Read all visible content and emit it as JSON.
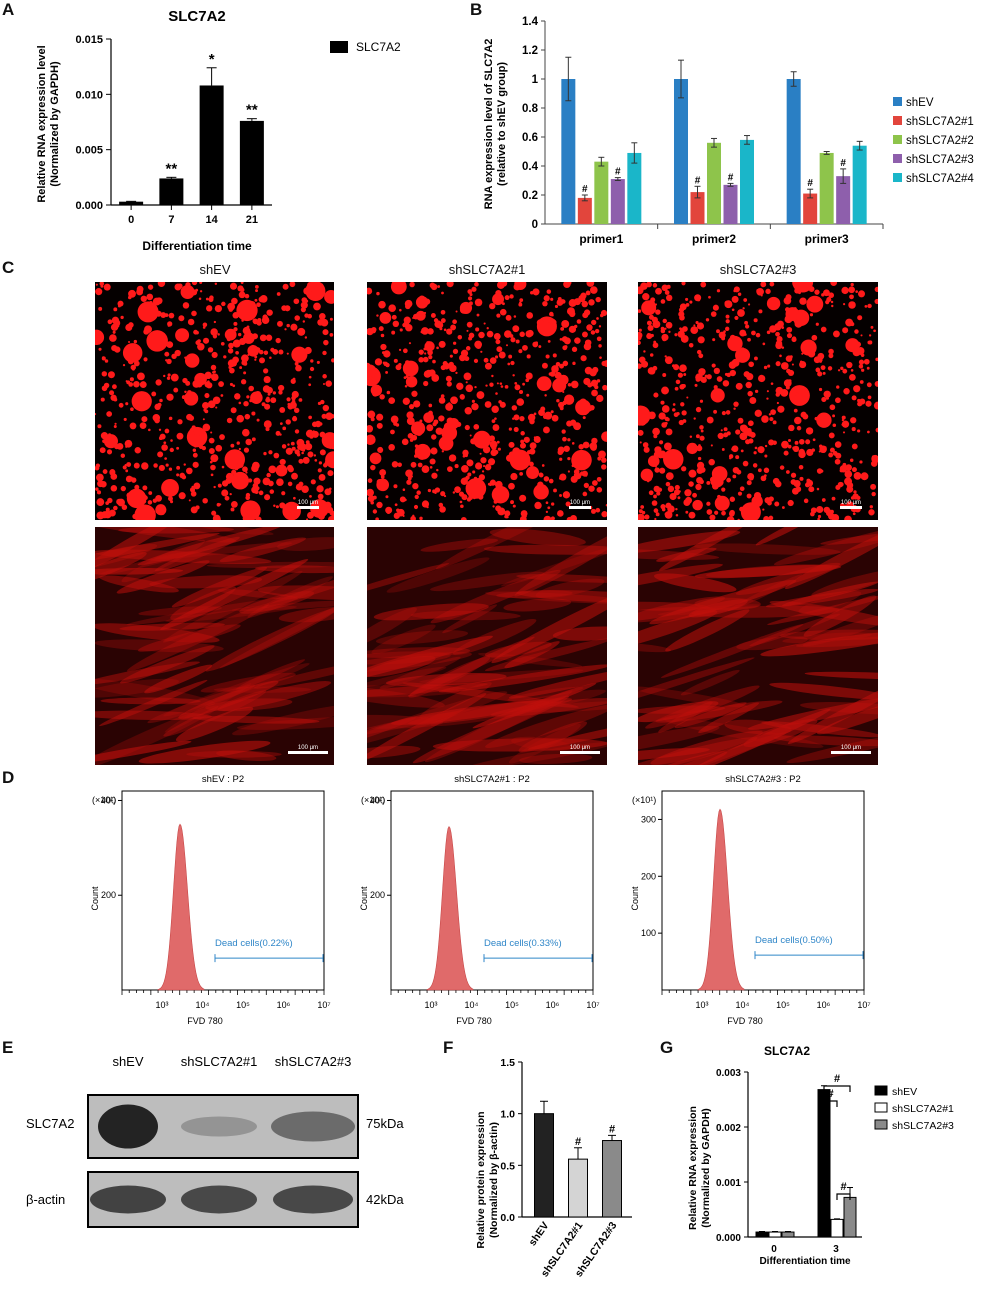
{
  "panelA": {
    "letter": "A",
    "title": "SLC7A2",
    "ylabel_line1": "Relative RNA expression level",
    "ylabel_line2": "(Normalized by GAPDH)",
    "xlabel": "Differentiation time",
    "legend": "SLC7A2",
    "yticks": [
      "0.000",
      "0.005",
      "0.010",
      "0.015"
    ],
    "color": "#000000"
  },
  "panelB": {
    "letter": "B",
    "ylabel_line1": "RNA expression level of SLC7A2",
    "ylabel_line2": "(relative to  shEV group)",
    "yticks": [
      "0",
      "0.2",
      "0.4",
      "0.6",
      "0.8",
      "1",
      "1.2",
      "1.4"
    ],
    "hash": "#"
  },
  "panelC": {
    "letter": "C",
    "titles": [
      "shEV",
      "shSLC7A2#1",
      "shSLC7A2#3"
    ],
    "scalebar": "100 μm"
  },
  "panelD": {
    "letter": "D",
    "titles": [
      "shEV : P2",
      "shSLC7A2#1 : P2",
      "shSLC7A2#3 : P2"
    ],
    "gates": [
      "Dead cells(0.22%)",
      "Dead cells(0.33%)",
      "Dead cells(0.50%)"
    ],
    "multiplier": "(×10¹)",
    "ylabel": "Count",
    "xlabel": "FVD 780",
    "yticks_a": [
      "200",
      "400"
    ],
    "yticks_c": [
      "100",
      "200",
      "300"
    ],
    "xtick_labels": [
      "10³",
      "10⁴",
      "10⁵",
      "10⁶",
      "10⁷"
    ],
    "fill_color": "#e06a6a"
  },
  "panelE": {
    "letter": "E",
    "lanes": [
      "shEV",
      "shSLC7A2#1",
      "shSLC7A2#3"
    ],
    "rows": [
      {
        "label": "SLC7A2",
        "size": "75kDa"
      },
      {
        "label": "β-actin",
        "size": "42kDa"
      }
    ]
  },
  "panelF": {
    "letter": "F",
    "ylabel_line1": "Relative protein expression",
    "ylabel_line2": "(Normalized by β-actin)",
    "yticks": [
      "0.0",
      "0.5",
      "1.0",
      "1.5"
    ],
    "hash": "#"
  },
  "panelG": {
    "letter": "G",
    "title": "SLC7A2",
    "ylabel_line1": "Relative RNA expression",
    "ylabel_line2": "(Normalized by GAPDH)",
    "xlabel": "Differentiation time",
    "yticks": [
      "0.000",
      "0.001",
      "0.002",
      "0.003"
    ],
    "hash": "#"
  },
  "chart_data": [
    {
      "id": "A",
      "type": "bar",
      "title": "SLC7A2",
      "categories": [
        "0",
        "7",
        "14",
        "21"
      ],
      "values": [
        0.0003,
        0.0024,
        0.0108,
        0.0076
      ],
      "errors": [
        3e-05,
        0.0001,
        0.0016,
        0.0002
      ],
      "annotations": [
        "",
        "**",
        "*",
        "**"
      ],
      "ylim": [
        0,
        0.015
      ],
      "xlabel": "Differentiation time",
      "ylabel": "Relative RNA expression level (Normalized by GAPDH)",
      "legend": "top-right"
    },
    {
      "id": "B",
      "type": "bar",
      "categories": [
        "primer1",
        "primer2",
        "primer3"
      ],
      "ylim": [
        0,
        1.4
      ],
      "ylabel": "RNA expression level of SLC7A2 (relative to  shEV group)",
      "legend": "right",
      "series": [
        {
          "name": "shEV",
          "color": "#2a7fc4",
          "values": [
            1.0,
            1.0,
            1.0
          ],
          "errors": [
            0.15,
            0.13,
            0.05
          ],
          "marks": [
            "",
            "",
            ""
          ]
        },
        {
          "name": "shSLC7A2#1",
          "color": "#e2453c",
          "values": [
            0.18,
            0.22,
            0.21
          ],
          "errors": [
            0.02,
            0.04,
            0.03
          ],
          "marks": [
            "#",
            "#",
            "#"
          ]
        },
        {
          "name": "shSLC7A2#2",
          "color": "#8ec44b",
          "values": [
            0.43,
            0.56,
            0.49
          ],
          "errors": [
            0.03,
            0.03,
            0.01
          ],
          "marks": [
            "",
            "",
            ""
          ]
        },
        {
          "name": "shSLC7A2#3",
          "color": "#8e5fac",
          "values": [
            0.31,
            0.27,
            0.33
          ],
          "errors": [
            0.01,
            0.01,
            0.05
          ],
          "marks": [
            "#",
            "#",
            "#"
          ]
        },
        {
          "name": "shSLC7A2#4",
          "color": "#1ab6c9",
          "values": [
            0.49,
            0.58,
            0.54
          ],
          "errors": [
            0.07,
            0.03,
            0.03
          ],
          "marks": [
            "",
            "",
            ""
          ]
        }
      ]
    },
    {
      "id": "F",
      "type": "bar",
      "categories": [
        "shEV",
        "shSLC7A2#1",
        "shSLC7A2#3"
      ],
      "values": [
        1.0,
        0.56,
        0.74
      ],
      "errors": [
        0.12,
        0.11,
        0.05
      ],
      "colors": [
        "#222222",
        "#d4d4d4",
        "#8a8a8a"
      ],
      "annotations": [
        "",
        "#",
        "#"
      ],
      "ylim": [
        0,
        1.5
      ],
      "ylabel": "Relative protein expression (Normalized by β-actin)"
    },
    {
      "id": "G",
      "type": "bar",
      "title": "SLC7A2",
      "categories": [
        "0",
        "3"
      ],
      "xlabel": "Differentiation time",
      "ylabel": "Relative RNA expression (Normalized by GAPDH)",
      "ylim": [
        0,
        0.003
      ],
      "legend": "right",
      "series": [
        {
          "name": "shEV",
          "color": "#000000",
          "values": [
            9e-05,
            0.00268
          ],
          "errors": [
            1e-05,
            7e-05
          ]
        },
        {
          "name": "shSLC7A2#1",
          "color": "#ffffff",
          "values": [
            9e-05,
            0.00032
          ],
          "errors": [
            1e-05,
            1e-05
          ]
        },
        {
          "name": "shSLC7A2#3",
          "color": "#8a8a8a",
          "values": [
            9e-05,
            0.00072
          ],
          "errors": [
            1e-05,
            0.00018
          ]
        }
      ],
      "brackets": [
        "#",
        "#",
        "#"
      ]
    },
    {
      "id": "D",
      "type": "area",
      "panels": [
        {
          "title": "shEV : P2",
          "ylim": [
            0,
            420
          ],
          "peak": 350,
          "gate": "Dead cells(0.22%)"
        },
        {
          "title": "shSLC7A2#1 : P2",
          "ylim": [
            0,
            420
          ],
          "peak": 345,
          "gate": "Dead cells(0.33%)"
        },
        {
          "title": "shSLC7A2#3 : P2",
          "ylim": [
            0,
            350
          ],
          "peak": 318,
          "gate": "Dead cells(0.50%)"
        }
      ],
      "xlabel": "FVD 780",
      "ylabel": "Count"
    }
  ]
}
